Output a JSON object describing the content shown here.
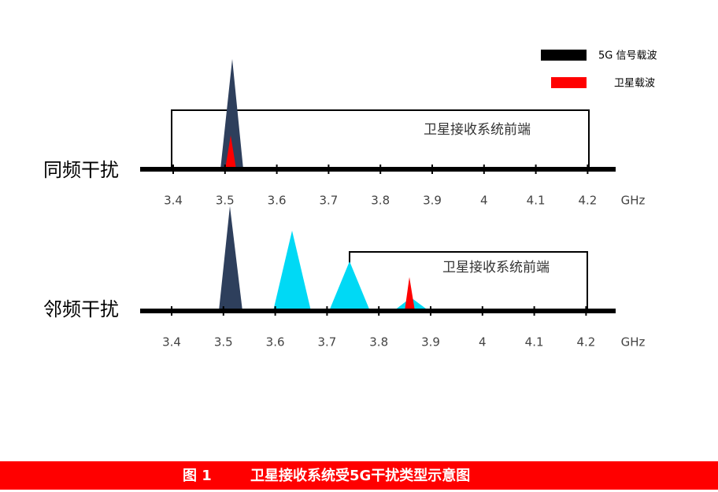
{
  "legend": [
    {
      "label": "5G 信号载波"
    },
    {
      "label": "卫星载波"
    }
  ],
  "panels": [
    {
      "label": "同频干扰",
      "bracket_label": "卫星接收系统前端",
      "ticks": [
        "3.4",
        "3.5",
        "3.6",
        "3.7",
        "3.8",
        "3.9",
        "4",
        "4.1",
        "4.2"
      ],
      "unit": "GHz"
    },
    {
      "label": "邻频干扰",
      "bracket_label": "卫星接收系统前端",
      "ticks": [
        "3.4",
        "3.5",
        "3.6",
        "3.7",
        "3.8",
        "3.9",
        "4",
        "4.1",
        "4.2"
      ],
      "unit": "GHz"
    }
  ],
  "caption": {
    "number": "图 1",
    "title": "卫星接收系统受5G干扰类型示意图"
  }
}
